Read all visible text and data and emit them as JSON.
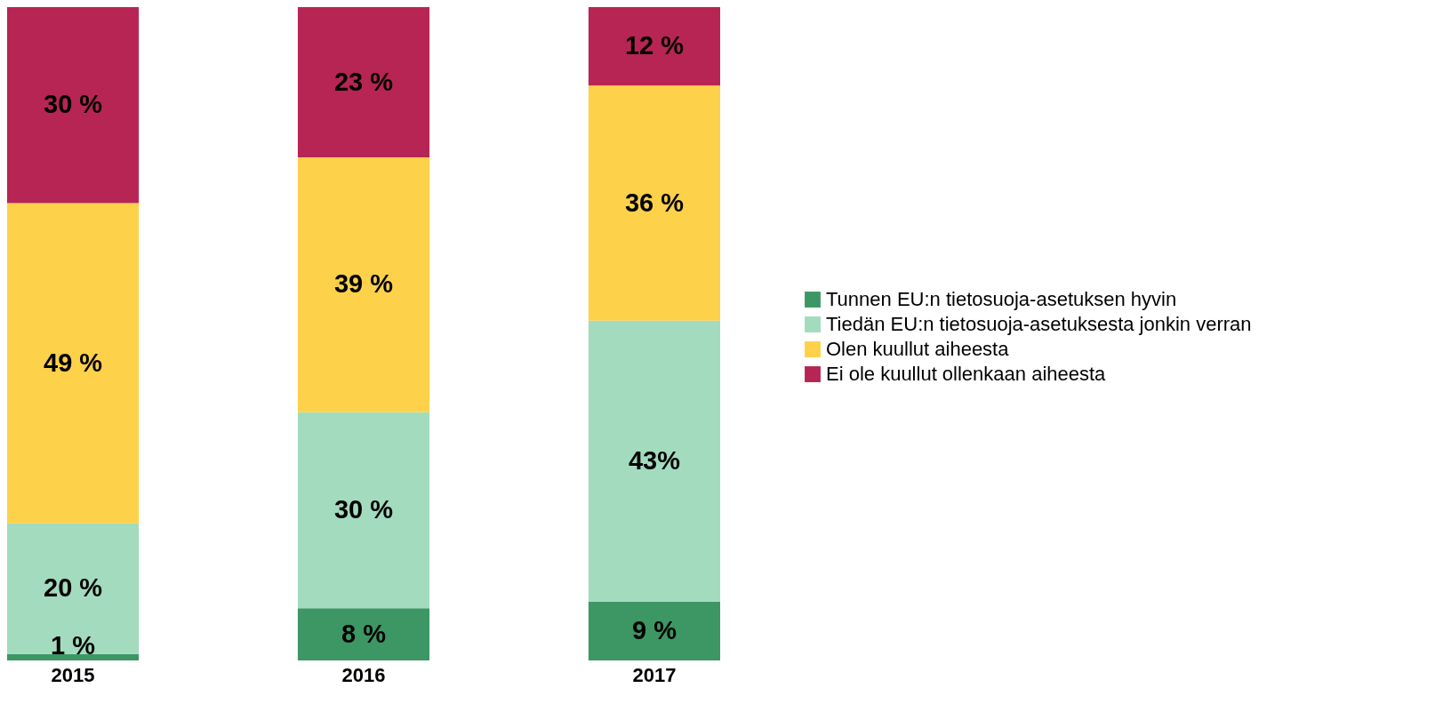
{
  "chart_data": {
    "type": "bar",
    "stacked": true,
    "categories": [
      "2015",
      "2016",
      "2017"
    ],
    "series": [
      {
        "name": "Tunnen EU:n tietosuoja-asetuksen hyvin",
        "color": "#3d9764",
        "values": [
          1,
          8,
          9
        ],
        "value_labels": [
          "1 %",
          "8 %",
          "9 %"
        ]
      },
      {
        "name": "Tiedän EU:n tietosuoja-asetuksesta jonkin verran",
        "color": "#a3dbbf",
        "values": [
          20,
          30,
          43
        ],
        "value_labels": [
          "20 %",
          "30 %",
          "43%"
        ]
      },
      {
        "name": "Olen kuullut aiheesta",
        "color": "#fed14a",
        "values": [
          49,
          39,
          36
        ],
        "value_labels": [
          "49 %",
          "39 %",
          "36 %"
        ]
      },
      {
        "name": "Ei ole kuullut ollenkaan aiheesta",
        "color": "#b72554",
        "values": [
          30,
          23,
          12
        ],
        "value_labels": [
          "30 %",
          "23 %",
          "12 %"
        ]
      }
    ],
    "legend": "right",
    "grid": false
  }
}
